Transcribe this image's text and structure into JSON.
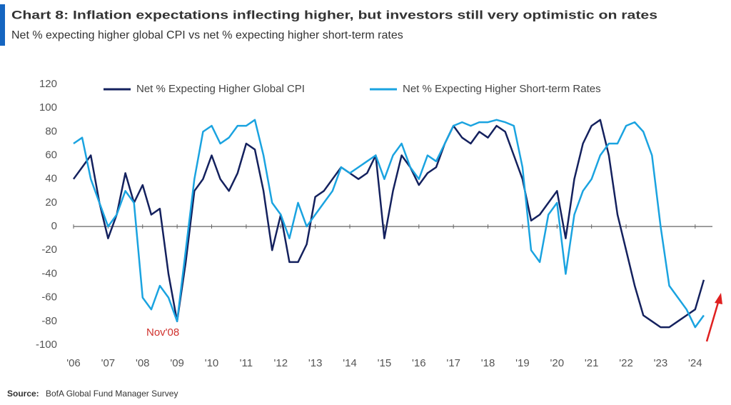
{
  "chart_data": {
    "type": "line",
    "title": "Chart 8: Inflation expectations inflecting higher, but investors still very optimistic on rates",
    "subtitle": "Net % expecting higher global CPI vs net % expecting higher short-term rates",
    "source_label": "Source:",
    "source": "BofA Global Fund Manager Survey",
    "annotation": "Nov'08",
    "x": [
      2006,
      2006.25,
      2006.5,
      2006.75,
      2007,
      2007.25,
      2007.5,
      2007.75,
      2008,
      2008.25,
      2008.5,
      2008.75,
      2009,
      2009.25,
      2009.5,
      2009.75,
      2010,
      2010.25,
      2010.5,
      2010.75,
      2011,
      2011.25,
      2011.5,
      2011.75,
      2012,
      2012.25,
      2012.5,
      2012.75,
      2013,
      2013.25,
      2013.5,
      2013.75,
      2014,
      2014.25,
      2014.5,
      2014.75,
      2015,
      2015.25,
      2015.5,
      2015.75,
      2016,
      2016.25,
      2016.5,
      2016.75,
      2017,
      2017.25,
      2017.5,
      2017.75,
      2018,
      2018.25,
      2018.5,
      2018.75,
      2019,
      2019.25,
      2019.5,
      2019.75,
      2020,
      2020.25,
      2020.5,
      2020.75,
      2021,
      2021.25,
      2021.5,
      2021.75,
      2022,
      2022.25,
      2022.5,
      2022.75,
      2023,
      2023.25,
      2023.5,
      2023.75,
      2024,
      2024.25
    ],
    "series": [
      {
        "name": "Net % Expecting Higher Global CPI",
        "color": "#14215e",
        "values": [
          40,
          50,
          60,
          20,
          -10,
          10,
          45,
          20,
          35,
          10,
          15,
          -40,
          -80,
          -30,
          30,
          40,
          60,
          40,
          30,
          45,
          70,
          65,
          30,
          -20,
          10,
          -30,
          -30,
          -15,
          25,
          30,
          40,
          50,
          45,
          40,
          45,
          60,
          -10,
          30,
          60,
          50,
          35,
          45,
          50,
          70,
          85,
          75,
          70,
          80,
          75,
          85,
          80,
          60,
          40,
          5,
          10,
          20,
          30,
          -10,
          40,
          70,
          85,
          90,
          60,
          10,
          -20,
          -50,
          -75,
          -80,
          -85,
          -85,
          -80,
          -75,
          -70,
          -45
        ]
      },
      {
        "name": "Net % Expecting Higher Short-term Rates",
        "color": "#1aa3e0",
        "values": [
          70,
          75,
          40,
          20,
          0,
          10,
          30,
          20,
          -60,
          -70,
          -50,
          -60,
          -80,
          -20,
          40,
          80,
          85,
          70,
          75,
          85,
          85,
          90,
          60,
          20,
          10,
          -10,
          20,
          0,
          10,
          20,
          30,
          50,
          45,
          50,
          55,
          60,
          40,
          60,
          70,
          50,
          40,
          60,
          55,
          70,
          85,
          88,
          85,
          88,
          88,
          90,
          88,
          85,
          50,
          -20,
          -30,
          10,
          20,
          -40,
          10,
          30,
          40,
          60,
          70,
          70,
          85,
          88,
          80,
          60,
          0,
          -50,
          -60,
          -70,
          -85,
          -75
        ]
      }
    ],
    "xlim": [
      2006,
      2024.5
    ],
    "xticks": [
      {
        "value": 2006,
        "label": "'06"
      },
      {
        "value": 2007,
        "label": "'07"
      },
      {
        "value": 2008,
        "label": "'08"
      },
      {
        "value": 2009,
        "label": "'09"
      },
      {
        "value": 2010,
        "label": "'10"
      },
      {
        "value": 2011,
        "label": "'11"
      },
      {
        "value": 2012,
        "label": "'12"
      },
      {
        "value": 2013,
        "label": "'13"
      },
      {
        "value": 2014,
        "label": "'14"
      },
      {
        "value": 2015,
        "label": "'15"
      },
      {
        "value": 2016,
        "label": "'16"
      },
      {
        "value": 2017,
        "label": "'17"
      },
      {
        "value": 2018,
        "label": "'18"
      },
      {
        "value": 2019,
        "label": "'19"
      },
      {
        "value": 2020,
        "label": "'20"
      },
      {
        "value": 2021,
        "label": "'21"
      },
      {
        "value": 2022,
        "label": "'22"
      },
      {
        "value": 2023,
        "label": "'23"
      },
      {
        "value": 2024,
        "label": "'24"
      }
    ],
    "ylim": [
      -100,
      120
    ],
    "yticks": [
      -100,
      -80,
      -60,
      -40,
      -20,
      0,
      20,
      40,
      60,
      80,
      100,
      120
    ],
    "grid": false
  }
}
